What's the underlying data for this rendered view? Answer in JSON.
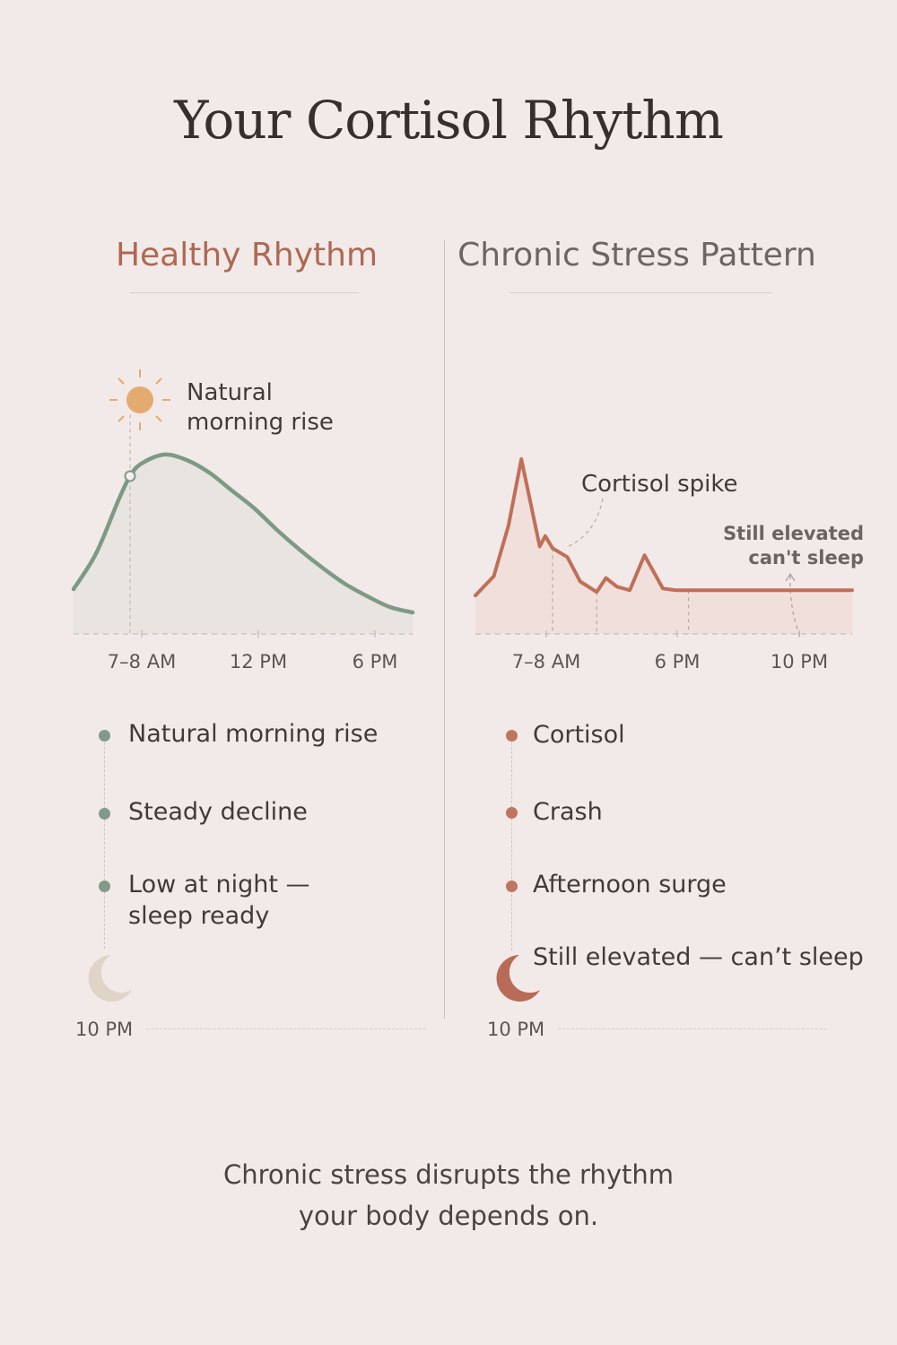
{
  "title": "Your Cortisol Rhythm",
  "panels": {
    "healthy": {
      "heading": "Healthy Rhythm",
      "annotation": [
        "Natural",
        "morning rise"
      ],
      "legend": [
        "Natural morning rise",
        "Steady decline",
        "Low at night —",
        "sleep ready"
      ],
      "night_label": "10 PM",
      "colors": {
        "line": "#7d9a84",
        "dot": "#819a89",
        "moon": "#e0d4c6",
        "sun": "#e3aa72",
        "heading": "#ae6853"
      }
    },
    "stress": {
      "heading": "Chronic Stress Pattern",
      "annotation_spike": "Cortisol spike",
      "annotation_elevated": [
        "Still elevated",
        "can't sleep"
      ],
      "legend": [
        "Cortisol",
        "Crash",
        "Afternoon surge",
        "Still elevated — can’t sleep"
      ],
      "night_label": "10 PM",
      "colors": {
        "line": "#bf6f58",
        "dot": "#c07560",
        "moon": "#b86b56",
        "fill": "#f0dcd8"
      }
    }
  },
  "chart_data": [
    {
      "type": "area",
      "title": "Healthy Rhythm",
      "xlabel": "",
      "ylabel": "",
      "x_ticks": [
        "7–8 AM",
        "12 PM",
        "6 PM"
      ],
      "x_hours": [
        5,
        6,
        7,
        7.5,
        8,
        9,
        10,
        11,
        12,
        13,
        14,
        15,
        16,
        17,
        18,
        19,
        20
      ],
      "y": [
        0.25,
        0.45,
        0.75,
        0.88,
        0.95,
        1.0,
        0.97,
        0.9,
        0.8,
        0.7,
        0.58,
        0.47,
        0.37,
        0.28,
        0.21,
        0.15,
        0.12
      ],
      "ylim": [
        0,
        1.2
      ],
      "grid": false,
      "legend": "none"
    },
    {
      "type": "area",
      "title": "Chronic Stress Pattern",
      "xlabel": "",
      "ylabel": "",
      "x_ticks": [
        "7–8 AM",
        "6 PM",
        "10 PM"
      ],
      "x_hours": [
        4,
        5,
        5.8,
        6.5,
        7.5,
        7.8,
        8.2,
        9.0,
        9.7,
        10.6,
        11.1,
        11.7,
        12.4,
        13.2,
        14.2,
        14.9,
        15.6,
        18.5,
        19.5,
        21.5,
        24.5
      ],
      "y": [
        0.22,
        0.33,
        0.62,
        1.0,
        0.5,
        0.56,
        0.49,
        0.44,
        0.3,
        0.24,
        0.32,
        0.27,
        0.25,
        0.45,
        0.26,
        0.25,
        0.25,
        0.25,
        0.25,
        0.25,
        0.25
      ],
      "ylim": [
        0,
        1.2
      ],
      "grid": false,
      "legend": "none"
    }
  ],
  "footer": [
    "Chronic stress disrupts the rhythm",
    "your body depends on."
  ]
}
